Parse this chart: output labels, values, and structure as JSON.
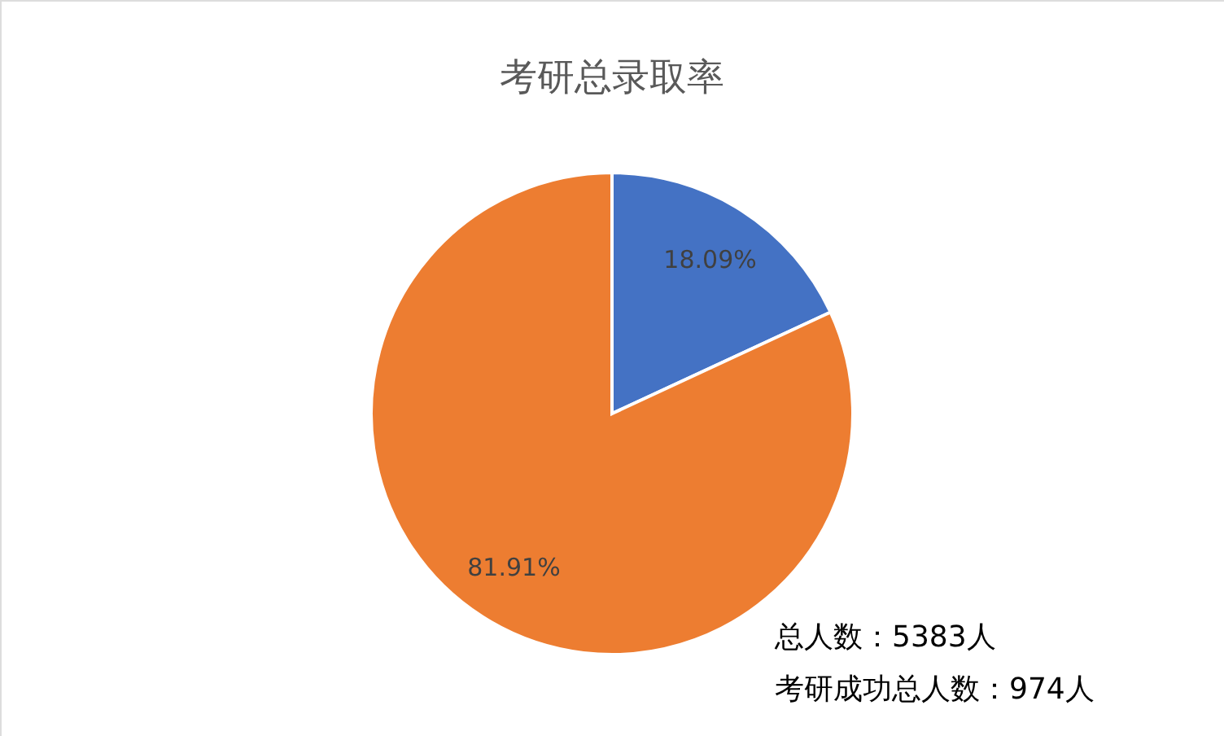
{
  "chart_data": {
    "type": "pie",
    "title": "考研总录取率",
    "categories": [
      null,
      null
    ],
    "values": [
      18.09,
      81.91
    ],
    "colors": [
      "#4472c4",
      "#ed7d31"
    ],
    "value_labels": [
      "18.09%",
      "81.91%"
    ],
    "annotations": [
      "总人数：5383人",
      "考研成功总人数：974人"
    ]
  }
}
